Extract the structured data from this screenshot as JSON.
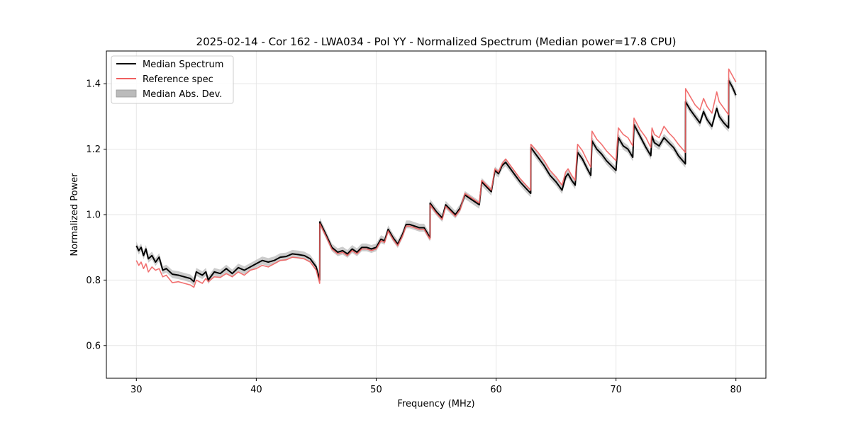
{
  "chart_data": {
    "type": "line",
    "title": "2025-02-14 - Cor 162 - LWA034 - Pol YY - Normalized Spectrum (Median power=17.8 CPU)",
    "xlabel": "Frequency (MHz)",
    "ylabel": "Normalized Power",
    "xlim": [
      27.5,
      82.5
    ],
    "ylim": [
      0.5,
      1.5
    ],
    "xticks": [
      30,
      40,
      50,
      60,
      70,
      80
    ],
    "yticks": [
      0.6,
      0.8,
      1.0,
      1.2,
      1.4
    ],
    "xtick_labels": [
      "30",
      "40",
      "50",
      "60",
      "70",
      "80"
    ],
    "ytick_labels": [
      "0.6",
      "0.8",
      "1.0",
      "1.2",
      "1.4"
    ],
    "grid": true,
    "legend_position": "top-left",
    "legend": [
      {
        "label": "Median Spectrum",
        "kind": "line",
        "color": "#000000"
      },
      {
        "label": "Reference spec",
        "kind": "line",
        "color": "#f06060"
      },
      {
        "label": "Median Abs. Dev.",
        "kind": "band",
        "color": "#bbbbbb"
      }
    ],
    "mad_halfwidth": 0.012,
    "series": [
      {
        "name": "Median Spectrum",
        "color": "#000000",
        "x": [
          30.0,
          30.2,
          30.4,
          30.6,
          30.8,
          31.0,
          31.3,
          31.6,
          31.9,
          32.2,
          32.5,
          33.0,
          33.5,
          34.0,
          34.5,
          34.8,
          35.0,
          35.5,
          35.8,
          36.0,
          36.5,
          37.0,
          37.5,
          38.0,
          38.5,
          39.0,
          39.5,
          40.0,
          40.5,
          41.0,
          41.5,
          42.0,
          42.5,
          43.0,
          43.5,
          44.0,
          44.5,
          45.0,
          45.29,
          45.3,
          45.8,
          46.3,
          46.8,
          47.2,
          47.6,
          48.0,
          48.4,
          48.8,
          49.2,
          49.6,
          50.0,
          50.4,
          50.7,
          51.0,
          51.4,
          51.8,
          52.2,
          52.5,
          52.8,
          53.2,
          53.6,
          54.0,
          54.4,
          54.49,
          54.5,
          55.0,
          55.5,
          55.8,
          56.2,
          56.6,
          57.0,
          57.4,
          57.8,
          58.2,
          58.6,
          58.8,
          59.2,
          59.6,
          59.9,
          60.2,
          60.5,
          60.8,
          61.2,
          61.6,
          62.0,
          62.5,
          62.89,
          62.9,
          63.5,
          64.0,
          64.5,
          65.0,
          65.5,
          65.8,
          66.0,
          66.3,
          66.6,
          66.8,
          67.2,
          67.6,
          67.9,
          68.0,
          68.4,
          68.8,
          69.2,
          69.6,
          70.0,
          70.2,
          70.6,
          71.0,
          71.4,
          71.5,
          72.0,
          72.5,
          72.9,
          73.0,
          73.2,
          73.6,
          74.0,
          74.4,
          74.8,
          75.2,
          75.79,
          75.8,
          76.2,
          76.6,
          77.0,
          77.3,
          77.6,
          78.0,
          78.4,
          78.6,
          79.0,
          79.39,
          79.4,
          79.7,
          80.0
        ],
        "y": [
          0.905,
          0.89,
          0.9,
          0.875,
          0.895,
          0.865,
          0.875,
          0.855,
          0.87,
          0.83,
          0.835,
          0.818,
          0.815,
          0.81,
          0.805,
          0.795,
          0.825,
          0.815,
          0.825,
          0.8,
          0.825,
          0.82,
          0.835,
          0.82,
          0.838,
          0.83,
          0.84,
          0.85,
          0.86,
          0.855,
          0.86,
          0.87,
          0.872,
          0.88,
          0.878,
          0.875,
          0.865,
          0.84,
          0.8,
          0.978,
          0.94,
          0.9,
          0.885,
          0.89,
          0.88,
          0.895,
          0.885,
          0.9,
          0.9,
          0.895,
          0.9,
          0.925,
          0.92,
          0.955,
          0.93,
          0.91,
          0.94,
          0.97,
          0.97,
          0.965,
          0.96,
          0.96,
          0.935,
          0.93,
          1.035,
          1.01,
          0.99,
          1.03,
          1.015,
          1.0,
          1.02,
          1.06,
          1.05,
          1.04,
          1.03,
          1.1,
          1.085,
          1.07,
          1.135,
          1.125,
          1.15,
          1.16,
          1.14,
          1.12,
          1.1,
          1.08,
          1.065,
          1.205,
          1.175,
          1.15,
          1.12,
          1.1,
          1.075,
          1.115,
          1.125,
          1.105,
          1.09,
          1.19,
          1.17,
          1.14,
          1.12,
          1.225,
          1.2,
          1.185,
          1.165,
          1.15,
          1.135,
          1.235,
          1.21,
          1.2,
          1.175,
          1.275,
          1.24,
          1.205,
          1.18,
          1.24,
          1.22,
          1.21,
          1.235,
          1.22,
          1.205,
          1.18,
          1.155,
          1.345,
          1.32,
          1.3,
          1.28,
          1.315,
          1.29,
          1.27,
          1.325,
          1.3,
          1.28,
          1.265,
          1.41,
          1.39,
          1.365
        ]
      },
      {
        "name": "Reference spec",
        "color": "#f06060",
        "x": [
          30.0,
          30.2,
          30.4,
          30.6,
          30.8,
          31.0,
          31.3,
          31.6,
          31.9,
          32.2,
          32.5,
          33.0,
          33.5,
          34.0,
          34.5,
          34.8,
          35.0,
          35.5,
          35.8,
          36.0,
          36.5,
          37.0,
          37.5,
          38.0,
          38.5,
          39.0,
          39.5,
          40.0,
          40.5,
          41.0,
          41.5,
          42.0,
          42.5,
          43.0,
          43.5,
          44.0,
          44.5,
          45.0,
          45.29,
          45.3,
          45.8,
          46.3,
          46.8,
          47.2,
          47.6,
          48.0,
          48.4,
          48.8,
          49.2,
          49.6,
          50.0,
          50.4,
          50.7,
          51.0,
          51.4,
          51.8,
          52.2,
          52.5,
          52.8,
          53.2,
          53.6,
          54.0,
          54.4,
          54.49,
          54.5,
          55.0,
          55.5,
          55.8,
          56.2,
          56.6,
          57.0,
          57.4,
          57.8,
          58.2,
          58.6,
          58.8,
          59.2,
          59.6,
          59.9,
          60.2,
          60.5,
          60.8,
          61.2,
          61.6,
          62.0,
          62.5,
          62.89,
          62.9,
          63.5,
          64.0,
          64.5,
          65.0,
          65.5,
          65.8,
          66.0,
          66.3,
          66.6,
          66.8,
          67.2,
          67.6,
          67.9,
          68.0,
          68.4,
          68.8,
          69.2,
          69.6,
          70.0,
          70.2,
          70.6,
          71.0,
          71.4,
          71.5,
          72.0,
          72.5,
          72.9,
          73.0,
          73.2,
          73.6,
          74.0,
          74.4,
          74.8,
          75.2,
          75.79,
          75.8,
          76.2,
          76.6,
          77.0,
          77.3,
          77.6,
          78.0,
          78.4,
          78.6,
          79.0,
          79.39,
          79.4,
          79.7,
          80.0
        ],
        "y": [
          0.86,
          0.845,
          0.855,
          0.835,
          0.85,
          0.825,
          0.84,
          0.83,
          0.835,
          0.81,
          0.815,
          0.792,
          0.795,
          0.79,
          0.785,
          0.778,
          0.8,
          0.79,
          0.805,
          0.795,
          0.81,
          0.808,
          0.82,
          0.81,
          0.825,
          0.815,
          0.83,
          0.835,
          0.845,
          0.84,
          0.85,
          0.86,
          0.862,
          0.87,
          0.868,
          0.865,
          0.855,
          0.83,
          0.79,
          0.972,
          0.935,
          0.895,
          0.88,
          0.885,
          0.875,
          0.89,
          0.88,
          0.895,
          0.895,
          0.89,
          0.895,
          0.92,
          0.915,
          0.95,
          0.925,
          0.905,
          0.935,
          0.965,
          0.965,
          0.96,
          0.955,
          0.955,
          0.93,
          0.925,
          1.03,
          1.005,
          0.985,
          1.025,
          1.01,
          0.995,
          1.015,
          1.065,
          1.055,
          1.045,
          1.035,
          1.105,
          1.09,
          1.075,
          1.14,
          1.13,
          1.155,
          1.17,
          1.15,
          1.13,
          1.11,
          1.09,
          1.075,
          1.215,
          1.19,
          1.165,
          1.135,
          1.115,
          1.09,
          1.13,
          1.14,
          1.12,
          1.105,
          1.215,
          1.195,
          1.165,
          1.145,
          1.255,
          1.23,
          1.215,
          1.195,
          1.18,
          1.165,
          1.265,
          1.245,
          1.235,
          1.21,
          1.295,
          1.26,
          1.235,
          1.205,
          1.265,
          1.245,
          1.235,
          1.27,
          1.25,
          1.235,
          1.215,
          1.19,
          1.385,
          1.36,
          1.335,
          1.32,
          1.355,
          1.33,
          1.31,
          1.375,
          1.345,
          1.325,
          1.305,
          1.445,
          1.425,
          1.405
        ]
      }
    ]
  }
}
